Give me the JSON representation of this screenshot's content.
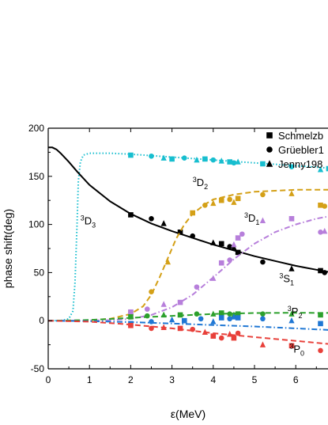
{
  "chart_data": {
    "type": "line",
    "xlabel": "ε(MeV)",
    "ylabel": "phase shift(deg)",
    "xlim": [
      0,
      7
    ],
    "ylim": [
      -50,
      200
    ],
    "x_ticks": [
      0,
      1,
      2,
      3,
      4,
      5,
      6
    ],
    "y_ticks": [
      -50,
      0,
      50,
      100,
      150,
      200
    ],
    "grid": false,
    "legend": {
      "placement": "top-right",
      "entries": [
        {
          "label": "Schmelzb",
          "marker": "square"
        },
        {
          "label": "Grüebler1",
          "marker": "circle"
        },
        {
          "label": "Jenny198",
          "marker": "triangle"
        }
      ]
    },
    "annotations": [
      {
        "sup": "3",
        "main": "D",
        "sub": "3",
        "x": 0.78,
        "y": 100
      },
      {
        "sup": "3",
        "main": "D",
        "sub": "2",
        "x": 3.5,
        "y": 140
      },
      {
        "sup": "3",
        "main": "D",
        "sub": "1",
        "x": 4.75,
        "y": 103
      },
      {
        "sup": "3",
        "main": "S",
        "sub": "1",
        "x": 5.6,
        "y": 40
      },
      {
        "sup": "3",
        "main": "P",
        "sub": "2",
        "x": 5.8,
        "y": 6
      },
      {
        "sup": "3",
        "main": "P",
        "sub": "0",
        "x": 5.85,
        "y": -33
      }
    ],
    "series": [
      {
        "name": "3D3",
        "color": "#17becf",
        "style": "dotted",
        "curve": [
          [
            0,
            0
          ],
          [
            0.3,
            0.1
          ],
          [
            0.5,
            2
          ],
          [
            0.6,
            10
          ],
          [
            0.65,
            40
          ],
          [
            0.7,
            100
          ],
          [
            0.73,
            145
          ],
          [
            0.78,
            165
          ],
          [
            0.85,
            172
          ],
          [
            1.0,
            174
          ],
          [
            1.5,
            174
          ],
          [
            2,
            173
          ],
          [
            3,
            170
          ],
          [
            4,
            167
          ],
          [
            5,
            164
          ],
          [
            6,
            161
          ],
          [
            7,
            158
          ]
        ],
        "data": [
          [
            2.0,
            172
          ],
          [
            2.5,
            171
          ],
          [
            2.8,
            169
          ],
          [
            3.0,
            168
          ],
          [
            3.3,
            169
          ],
          [
            3.6,
            167
          ],
          [
            3.8,
            168
          ],
          [
            4.0,
            167
          ],
          [
            4.2,
            166
          ],
          [
            4.4,
            165
          ],
          [
            4.5,
            164
          ],
          [
            4.6,
            165
          ],
          [
            5.2,
            163
          ],
          [
            5.9,
            160
          ],
          [
            6.6,
            157
          ],
          [
            6.8,
            158
          ]
        ]
      },
      {
        "name": "3S1",
        "color": "#000000",
        "style": "solid",
        "curve": [
          [
            0,
            180
          ],
          [
            0.1,
            180
          ],
          [
            0.2,
            178
          ],
          [
            0.3,
            174
          ],
          [
            0.5,
            165
          ],
          [
            0.7,
            155
          ],
          [
            1.0,
            141
          ],
          [
            1.5,
            124
          ],
          [
            2.0,
            111
          ],
          [
            2.5,
            101
          ],
          [
            3.0,
            93
          ],
          [
            3.5,
            86
          ],
          [
            4.0,
            79
          ],
          [
            4.5,
            73
          ],
          [
            5.0,
            67
          ],
          [
            5.5,
            62
          ],
          [
            6.0,
            57
          ],
          [
            6.5,
            53
          ],
          [
            7.0,
            49
          ]
        ],
        "data": [
          [
            2.0,
            110
          ],
          [
            2.5,
            106
          ],
          [
            2.8,
            101
          ],
          [
            3.2,
            92
          ],
          [
            3.5,
            88
          ],
          [
            4.0,
            81
          ],
          [
            4.2,
            80
          ],
          [
            4.4,
            77
          ],
          [
            4.5,
            76
          ],
          [
            4.6,
            71
          ],
          [
            5.2,
            61
          ],
          [
            5.9,
            54
          ],
          [
            6.6,
            52
          ],
          [
            6.7,
            50
          ]
        ]
      },
      {
        "name": "3D2",
        "color": "#d4a017",
        "style": "dashed",
        "curve": [
          [
            0,
            0
          ],
          [
            1.0,
            0.5
          ],
          [
            1.5,
            2
          ],
          [
            2.0,
            7
          ],
          [
            2.3,
            15
          ],
          [
            2.5,
            27
          ],
          [
            2.7,
            45
          ],
          [
            2.9,
            65
          ],
          [
            3.1,
            85
          ],
          [
            3.3,
            100
          ],
          [
            3.5,
            111
          ],
          [
            3.8,
            121
          ],
          [
            4.0,
            126
          ],
          [
            4.5,
            131
          ],
          [
            5.0,
            134
          ],
          [
            5.5,
            135
          ],
          [
            6.0,
            136
          ],
          [
            7.0,
            136
          ]
        ],
        "data": [
          [
            2.0,
            8
          ],
          [
            2.5,
            30
          ],
          [
            2.9,
            61
          ],
          [
            3.5,
            112
          ],
          [
            3.8,
            120
          ],
          [
            4.0,
            122
          ],
          [
            4.2,
            125
          ],
          [
            4.4,
            126
          ],
          [
            4.5,
            123
          ],
          [
            4.6,
            127
          ],
          [
            5.2,
            131
          ],
          [
            5.9,
            132
          ],
          [
            6.6,
            120
          ],
          [
            6.7,
            119
          ]
        ]
      },
      {
        "name": "3D1",
        "color": "#b77fdb",
        "style": "dashdot",
        "curve": [
          [
            0,
            0
          ],
          [
            1.5,
            0.5
          ],
          [
            2.0,
            2
          ],
          [
            2.5,
            6
          ],
          [
            3.0,
            14
          ],
          [
            3.5,
            27
          ],
          [
            4.0,
            45
          ],
          [
            4.5,
            64
          ],
          [
            5.0,
            80
          ],
          [
            5.5,
            92
          ],
          [
            6.0,
            100
          ],
          [
            6.5,
            106
          ],
          [
            7.0,
            110
          ]
        ],
        "data": [
          [
            2.0,
            9
          ],
          [
            2.4,
            12
          ],
          [
            2.8,
            17
          ],
          [
            3.2,
            19
          ],
          [
            3.6,
            35
          ],
          [
            4.0,
            44
          ],
          [
            4.2,
            60
          ],
          [
            4.4,
            63
          ],
          [
            4.5,
            79
          ],
          [
            4.6,
            86
          ],
          [
            4.7,
            90
          ],
          [
            5.2,
            104
          ],
          [
            5.9,
            106
          ],
          [
            6.6,
            92
          ],
          [
            6.7,
            93
          ]
        ]
      },
      {
        "name": "3P2",
        "color": "#2ca02c",
        "style": "dashed",
        "curve": [
          [
            0,
            0
          ],
          [
            0.5,
            0.2
          ],
          [
            1.0,
            0.8
          ],
          [
            1.5,
            1.8
          ],
          [
            2.0,
            3
          ],
          [
            3.0,
            5
          ],
          [
            4.0,
            7
          ],
          [
            5.0,
            8
          ],
          [
            6.0,
            8.2
          ],
          [
            7.0,
            8
          ]
        ],
        "data": [
          [
            2.0,
            4
          ],
          [
            2.4,
            5
          ],
          [
            2.8,
            6
          ],
          [
            3.2,
            6
          ],
          [
            3.6,
            7
          ],
          [
            4.0,
            7
          ],
          [
            4.2,
            8
          ],
          [
            4.4,
            7
          ],
          [
            4.5,
            6
          ],
          [
            4.6,
            7
          ],
          [
            5.2,
            7
          ],
          [
            5.9,
            7
          ],
          [
            6.6,
            6
          ]
        ]
      },
      {
        "name": "3P1",
        "color": "#1f77d4",
        "style": "dashdot",
        "curve": [
          [
            0,
            0
          ],
          [
            1.0,
            -0.5
          ],
          [
            2.0,
            -1.5
          ],
          [
            3.0,
            -3
          ],
          [
            4.0,
            -4.5
          ],
          [
            5.0,
            -6
          ],
          [
            6.0,
            -8
          ],
          [
            7.0,
            -10
          ]
        ],
        "data": [
          [
            2.0,
            -3
          ],
          [
            2.5,
            -1
          ],
          [
            3.0,
            1
          ],
          [
            3.3,
            0
          ],
          [
            3.7,
            2
          ],
          [
            4.0,
            -1
          ],
          [
            4.2,
            3
          ],
          [
            4.4,
            2
          ],
          [
            4.5,
            4
          ],
          [
            4.6,
            3
          ],
          [
            5.2,
            2
          ],
          [
            5.9,
            0
          ],
          [
            6.6,
            -3
          ]
        ]
      },
      {
        "name": "3P0",
        "color": "#e8403a",
        "style": "dashed",
        "curve": [
          [
            0,
            0
          ],
          [
            1.0,
            -1
          ],
          [
            2.0,
            -4
          ],
          [
            3.0,
            -8
          ],
          [
            4.0,
            -13
          ],
          [
            5.0,
            -17
          ],
          [
            6.0,
            -21
          ],
          [
            7.0,
            -25
          ]
        ],
        "data": [
          [
            2.0,
            -5
          ],
          [
            2.5,
            -8
          ],
          [
            2.8,
            -7
          ],
          [
            3.2,
            -8
          ],
          [
            3.5,
            -9
          ],
          [
            3.8,
            -12
          ],
          [
            4.0,
            -16
          ],
          [
            4.2,
            -18
          ],
          [
            4.4,
            -14
          ],
          [
            4.5,
            -18
          ],
          [
            4.6,
            -13
          ],
          [
            5.2,
            -25
          ],
          [
            5.9,
            -26
          ],
          [
            6.6,
            -31
          ]
        ]
      }
    ]
  }
}
